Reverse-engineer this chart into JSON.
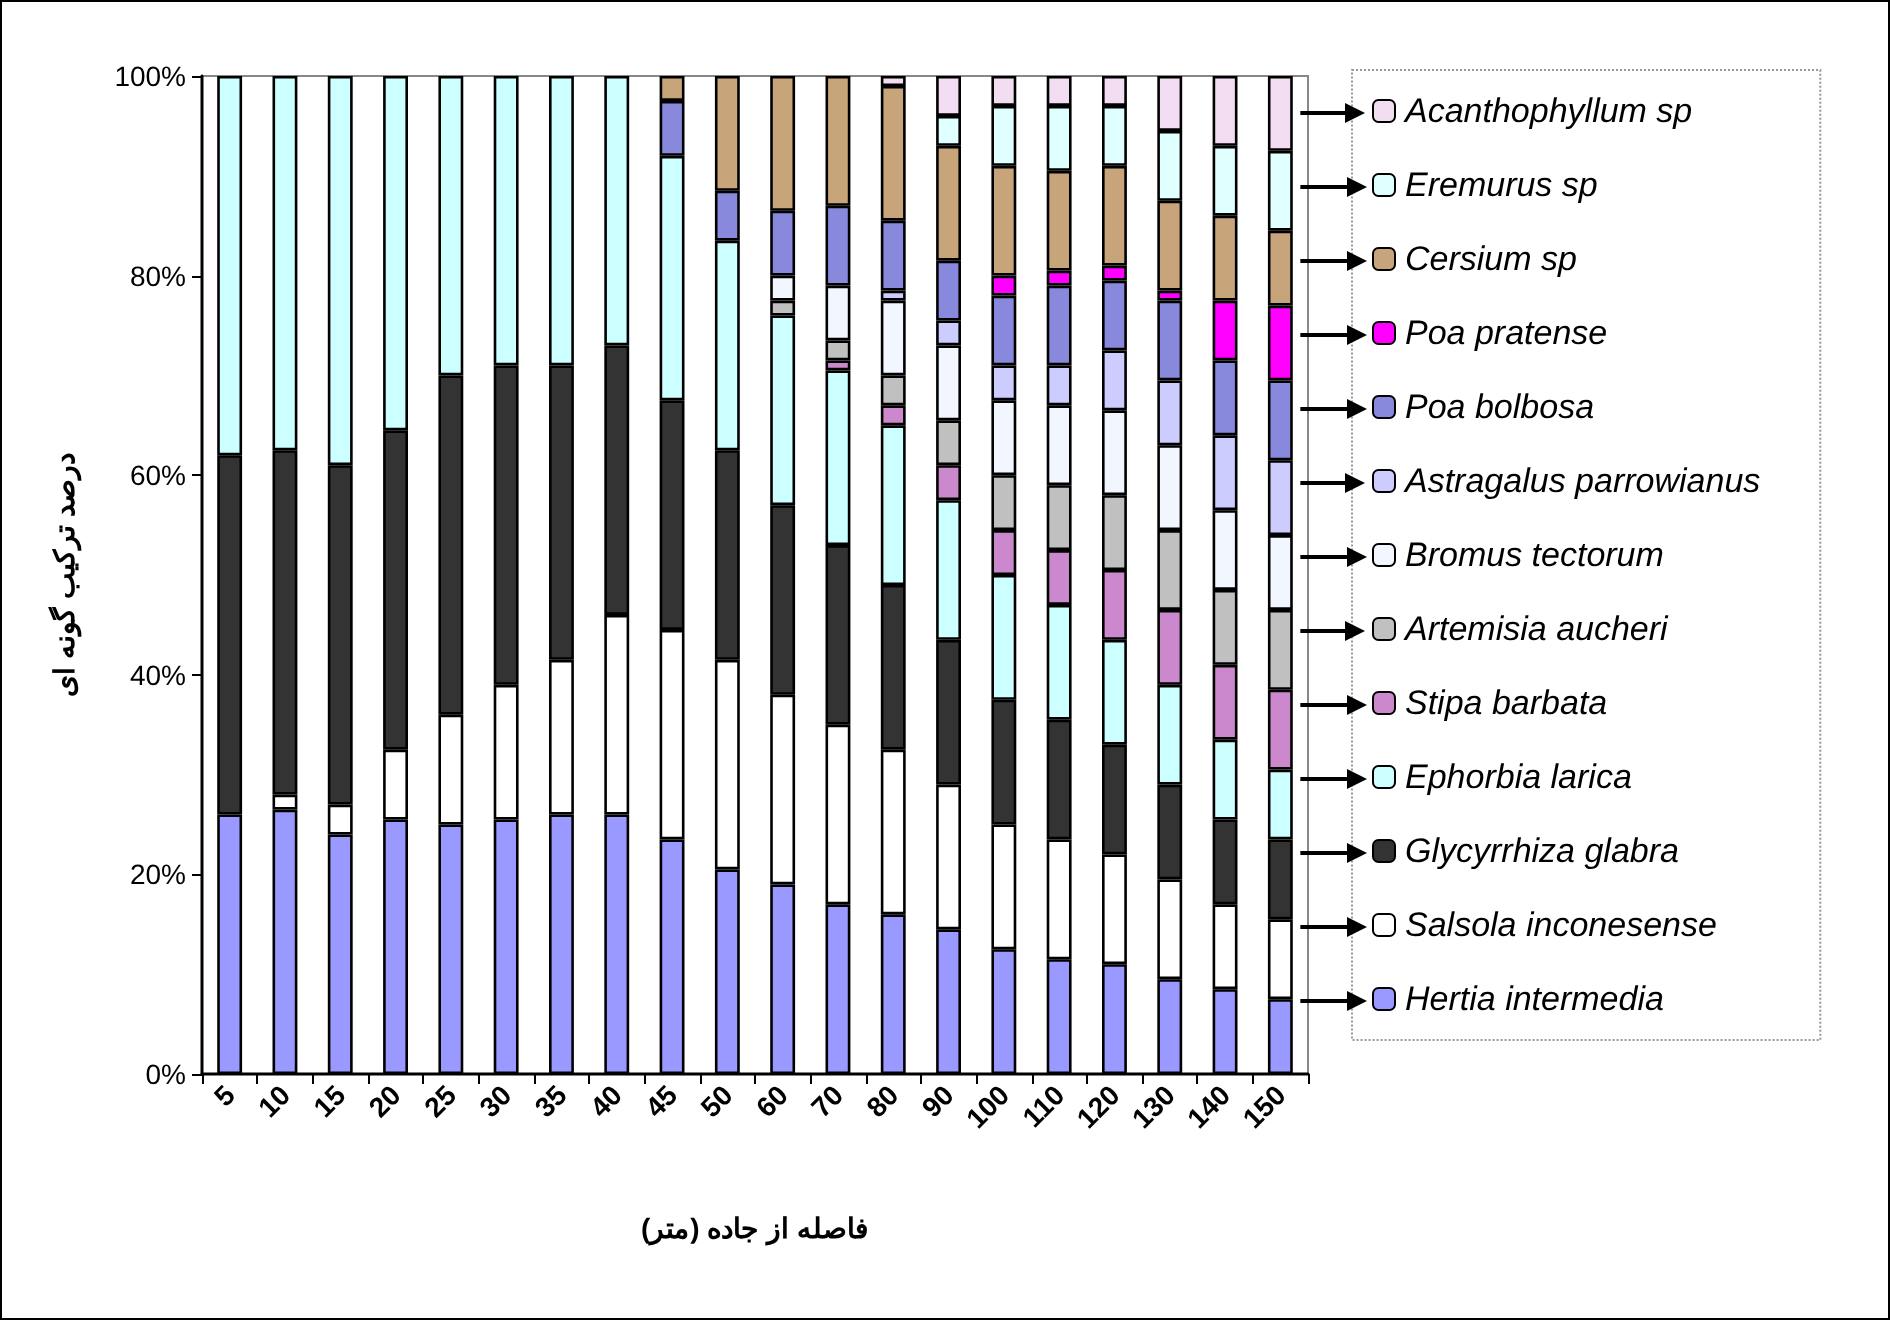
{
  "chart_data": {
    "type": "bar",
    "stacked": true,
    "xlabel": "فاصله از جاده (متر)",
    "ylabel": "درصد ترکیب گونه ای",
    "categories": [
      "5",
      "10",
      "15",
      "20",
      "25",
      "30",
      "35",
      "40",
      "45",
      "50",
      "60",
      "70",
      "80",
      "90",
      "100",
      "110",
      "120",
      "130",
      "140",
      "150"
    ],
    "ylim": [
      0,
      100
    ],
    "yticks": [
      {
        "value": 0,
        "label": "0%"
      },
      {
        "value": 20,
        "label": "20%"
      },
      {
        "value": 40,
        "label": "40%"
      },
      {
        "value": 60,
        "label": "60%"
      },
      {
        "value": 80,
        "label": "80%"
      },
      {
        "value": 100,
        "label": "100%"
      }
    ],
    "grid": false,
    "legend": "right",
    "series": [
      {
        "name": "Hertia intermedia",
        "color": "#9999ff",
        "values": [
          26,
          26.5,
          24,
          25.5,
          25,
          25.5,
          26,
          26,
          23.5,
          20.5,
          19,
          17,
          16,
          14.5,
          12.5,
          11.5,
          11,
          9.5,
          8.5,
          7.5
        ]
      },
      {
        "name": "Salsola inconesense",
        "color": "#ffffff",
        "values": [
          null,
          1.5,
          3,
          7,
          11,
          13.5,
          15.5,
          20,
          21,
          21,
          19,
          18,
          16.5,
          14.5,
          12.5,
          12,
          11,
          10,
          8.5,
          8
        ]
      },
      {
        "name": "Glycyrrhiza glabra",
        "color": "#333333",
        "values": [
          36,
          34.5,
          34,
          32,
          34,
          32,
          29.5,
          27,
          23,
          21,
          19,
          18,
          16.5,
          14.5,
          12.5,
          12,
          11,
          9.5,
          8.5,
          8
        ]
      },
      {
        "name": "Ephorbia larica",
        "color": "#ccffff",
        "values": [
          38,
          37.5,
          39,
          35.5,
          30,
          29,
          29,
          27,
          24.5,
          21,
          19,
          17.5,
          16,
          14,
          12.5,
          11.5,
          10.5,
          10,
          8,
          7
        ]
      },
      {
        "name": "Stipa barbata",
        "color": "#cc88cc",
        "values": [
          null,
          null,
          null,
          null,
          null,
          null,
          null,
          null,
          null,
          null,
          null,
          1,
          2,
          3.5,
          4.5,
          5.5,
          7,
          7.5,
          7.5,
          8
        ]
      },
      {
        "name": "Artemisia aucheri",
        "color": "#c0c0c0",
        "values": [
          null,
          null,
          null,
          null,
          null,
          null,
          null,
          null,
          null,
          null,
          1.5,
          2,
          3,
          4.5,
          5.5,
          6.5,
          7.5,
          8,
          7.5,
          8
        ]
      },
      {
        "name": "Bromus tectorum",
        "color": "#f2f6ff",
        "values": [
          null,
          null,
          null,
          null,
          null,
          null,
          null,
          null,
          null,
          null,
          2.5,
          5.5,
          7.5,
          7.5,
          7.5,
          8,
          8.5,
          8.5,
          8,
          7.5
        ]
      },
      {
        "name": "Astragalus parrowianus",
        "color": "#ccccff",
        "values": [
          null,
          null,
          null,
          null,
          null,
          null,
          null,
          null,
          null,
          null,
          null,
          null,
          1,
          2.5,
          3.5,
          4,
          6,
          6.5,
          7.5,
          7.5
        ]
      },
      {
        "name": "Poa bolbosa",
        "color": "#8888dd",
        "values": [
          null,
          null,
          null,
          null,
          null,
          null,
          null,
          null,
          5.5,
          5,
          6.5,
          8,
          7,
          6,
          7,
          8,
          7,
          8,
          7.5,
          8
        ]
      },
      {
        "name": "Poa pratense",
        "color": "#ff00ff",
        "values": [
          null,
          null,
          null,
          null,
          null,
          null,
          null,
          null,
          null,
          null,
          null,
          null,
          null,
          null,
          2,
          1.5,
          1.5,
          1,
          6,
          7.5
        ]
      },
      {
        "name": "Cersium sp",
        "color": "#c8a47a",
        "values": [
          null,
          null,
          null,
          null,
          null,
          null,
          null,
          null,
          2.5,
          11.5,
          13.5,
          13,
          13.5,
          11.5,
          11,
          10,
          10,
          9,
          8.5,
          7.5
        ]
      },
      {
        "name": "Eremurus sp",
        "color": "#e0ffff",
        "values": [
          null,
          null,
          null,
          null,
          null,
          null,
          null,
          null,
          null,
          null,
          null,
          null,
          null,
          3,
          6,
          6.5,
          6,
          7,
          7,
          8
        ]
      },
      {
        "name": "Acanthophyllum sp",
        "color": "#f2ddf2",
        "values": [
          null,
          null,
          null,
          null,
          null,
          null,
          null,
          null,
          null,
          null,
          null,
          null,
          1,
          4,
          3,
          3,
          3,
          5.5,
          7,
          7.5
        ]
      }
    ]
  }
}
